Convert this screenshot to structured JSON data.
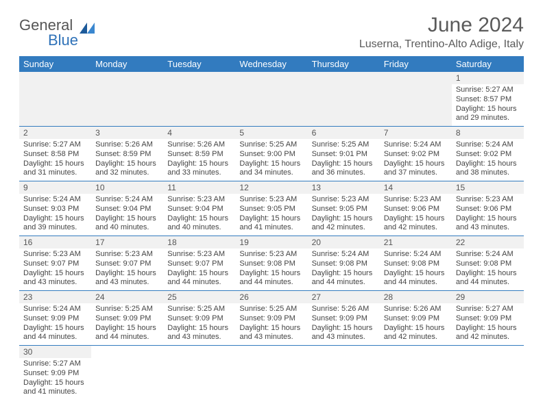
{
  "logo": {
    "general": "General",
    "blue": "Blue"
  },
  "title": "June 2024",
  "location": "Luserna, Trentino-Alto Adige, Italy",
  "weekdays": [
    "Sunday",
    "Monday",
    "Tuesday",
    "Wednesday",
    "Thursday",
    "Friday",
    "Saturday"
  ],
  "colors": {
    "header_bg": "#327bbf",
    "header_text": "#ffffff",
    "daybar_bg": "#f1f1f1",
    "border": "#327bbf",
    "title_color": "#5a5a5a"
  },
  "grid": [
    [
      {
        "empty": true
      },
      {
        "empty": true
      },
      {
        "empty": true
      },
      {
        "empty": true
      },
      {
        "empty": true
      },
      {
        "empty": true
      },
      {
        "day": "1",
        "sunrise": "Sunrise: 5:27 AM",
        "sunset": "Sunset: 8:57 PM",
        "daylight": "Daylight: 15 hours and 29 minutes."
      }
    ],
    [
      {
        "day": "2",
        "sunrise": "Sunrise: 5:27 AM",
        "sunset": "Sunset: 8:58 PM",
        "daylight": "Daylight: 15 hours and 31 minutes."
      },
      {
        "day": "3",
        "sunrise": "Sunrise: 5:26 AM",
        "sunset": "Sunset: 8:59 PM",
        "daylight": "Daylight: 15 hours and 32 minutes."
      },
      {
        "day": "4",
        "sunrise": "Sunrise: 5:26 AM",
        "sunset": "Sunset: 8:59 PM",
        "daylight": "Daylight: 15 hours and 33 minutes."
      },
      {
        "day": "5",
        "sunrise": "Sunrise: 5:25 AM",
        "sunset": "Sunset: 9:00 PM",
        "daylight": "Daylight: 15 hours and 34 minutes."
      },
      {
        "day": "6",
        "sunrise": "Sunrise: 5:25 AM",
        "sunset": "Sunset: 9:01 PM",
        "daylight": "Daylight: 15 hours and 36 minutes."
      },
      {
        "day": "7",
        "sunrise": "Sunrise: 5:24 AM",
        "sunset": "Sunset: 9:02 PM",
        "daylight": "Daylight: 15 hours and 37 minutes."
      },
      {
        "day": "8",
        "sunrise": "Sunrise: 5:24 AM",
        "sunset": "Sunset: 9:02 PM",
        "daylight": "Daylight: 15 hours and 38 minutes."
      }
    ],
    [
      {
        "day": "9",
        "sunrise": "Sunrise: 5:24 AM",
        "sunset": "Sunset: 9:03 PM",
        "daylight": "Daylight: 15 hours and 39 minutes."
      },
      {
        "day": "10",
        "sunrise": "Sunrise: 5:24 AM",
        "sunset": "Sunset: 9:04 PM",
        "daylight": "Daylight: 15 hours and 40 minutes."
      },
      {
        "day": "11",
        "sunrise": "Sunrise: 5:23 AM",
        "sunset": "Sunset: 9:04 PM",
        "daylight": "Daylight: 15 hours and 40 minutes."
      },
      {
        "day": "12",
        "sunrise": "Sunrise: 5:23 AM",
        "sunset": "Sunset: 9:05 PM",
        "daylight": "Daylight: 15 hours and 41 minutes."
      },
      {
        "day": "13",
        "sunrise": "Sunrise: 5:23 AM",
        "sunset": "Sunset: 9:05 PM",
        "daylight": "Daylight: 15 hours and 42 minutes."
      },
      {
        "day": "14",
        "sunrise": "Sunrise: 5:23 AM",
        "sunset": "Sunset: 9:06 PM",
        "daylight": "Daylight: 15 hours and 42 minutes."
      },
      {
        "day": "15",
        "sunrise": "Sunrise: 5:23 AM",
        "sunset": "Sunset: 9:06 PM",
        "daylight": "Daylight: 15 hours and 43 minutes."
      }
    ],
    [
      {
        "day": "16",
        "sunrise": "Sunrise: 5:23 AM",
        "sunset": "Sunset: 9:07 PM",
        "daylight": "Daylight: 15 hours and 43 minutes."
      },
      {
        "day": "17",
        "sunrise": "Sunrise: 5:23 AM",
        "sunset": "Sunset: 9:07 PM",
        "daylight": "Daylight: 15 hours and 43 minutes."
      },
      {
        "day": "18",
        "sunrise": "Sunrise: 5:23 AM",
        "sunset": "Sunset: 9:07 PM",
        "daylight": "Daylight: 15 hours and 44 minutes."
      },
      {
        "day": "19",
        "sunrise": "Sunrise: 5:23 AM",
        "sunset": "Sunset: 9:08 PM",
        "daylight": "Daylight: 15 hours and 44 minutes."
      },
      {
        "day": "20",
        "sunrise": "Sunrise: 5:24 AM",
        "sunset": "Sunset: 9:08 PM",
        "daylight": "Daylight: 15 hours and 44 minutes."
      },
      {
        "day": "21",
        "sunrise": "Sunrise: 5:24 AM",
        "sunset": "Sunset: 9:08 PM",
        "daylight": "Daylight: 15 hours and 44 minutes."
      },
      {
        "day": "22",
        "sunrise": "Sunrise: 5:24 AM",
        "sunset": "Sunset: 9:08 PM",
        "daylight": "Daylight: 15 hours and 44 minutes."
      }
    ],
    [
      {
        "day": "23",
        "sunrise": "Sunrise: 5:24 AM",
        "sunset": "Sunset: 9:09 PM",
        "daylight": "Daylight: 15 hours and 44 minutes."
      },
      {
        "day": "24",
        "sunrise": "Sunrise: 5:25 AM",
        "sunset": "Sunset: 9:09 PM",
        "daylight": "Daylight: 15 hours and 44 minutes."
      },
      {
        "day": "25",
        "sunrise": "Sunrise: 5:25 AM",
        "sunset": "Sunset: 9:09 PM",
        "daylight": "Daylight: 15 hours and 43 minutes."
      },
      {
        "day": "26",
        "sunrise": "Sunrise: 5:25 AM",
        "sunset": "Sunset: 9:09 PM",
        "daylight": "Daylight: 15 hours and 43 minutes."
      },
      {
        "day": "27",
        "sunrise": "Sunrise: 5:26 AM",
        "sunset": "Sunset: 9:09 PM",
        "daylight": "Daylight: 15 hours and 43 minutes."
      },
      {
        "day": "28",
        "sunrise": "Sunrise: 5:26 AM",
        "sunset": "Sunset: 9:09 PM",
        "daylight": "Daylight: 15 hours and 42 minutes."
      },
      {
        "day": "29",
        "sunrise": "Sunrise: 5:27 AM",
        "sunset": "Sunset: 9:09 PM",
        "daylight": "Daylight: 15 hours and 42 minutes."
      }
    ],
    [
      {
        "day": "30",
        "sunrise": "Sunrise: 5:27 AM",
        "sunset": "Sunset: 9:09 PM",
        "daylight": "Daylight: 15 hours and 41 minutes."
      },
      {
        "empty": true
      },
      {
        "empty": true
      },
      {
        "empty": true
      },
      {
        "empty": true
      },
      {
        "empty": true
      },
      {
        "empty": true
      }
    ]
  ]
}
